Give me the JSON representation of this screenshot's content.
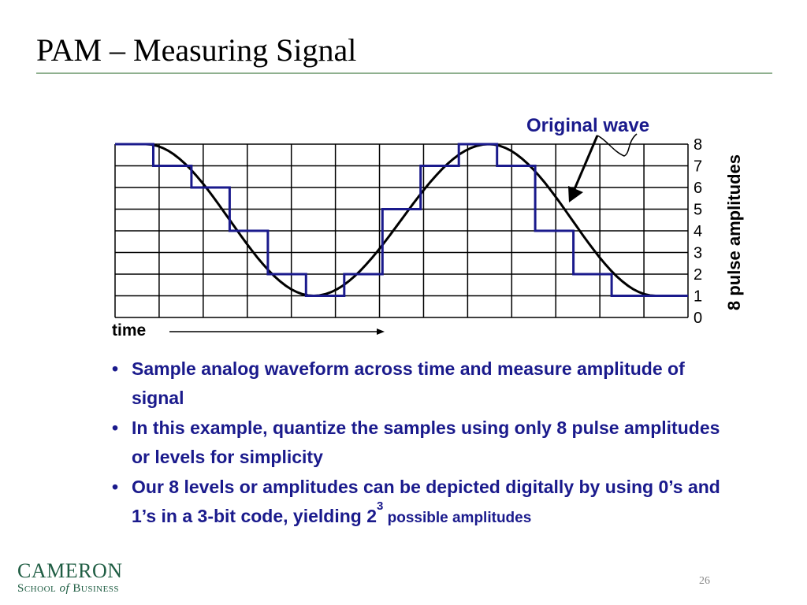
{
  "slide": {
    "title": "PAM – Measuring Signal",
    "page_number": "26"
  },
  "figure": {
    "original_wave_label": "Original wave",
    "levels_label": "8 pulse amplitudes",
    "time_label": "time",
    "level_numbers": [
      "8",
      "7",
      "6",
      "5",
      "4",
      "3",
      "2",
      "1",
      "0"
    ],
    "quantized_levels": [
      8,
      7,
      6,
      4,
      2,
      1,
      2,
      5,
      7,
      8,
      7,
      4,
      2,
      1,
      1
    ],
    "colors": {
      "wave": "#000000",
      "pam": "#1a1a8c",
      "grid": "#000000"
    }
  },
  "bullets": [
    {
      "text": "Sample analog waveform across time and measure amplitude of signal"
    },
    {
      "text": "In this example, quantize the samples using only 8 pulse amplitudes or levels for simplicity"
    },
    {
      "text": "Our 8 levels or amplitudes can be depicted digitally by using 0’s and 1’s in a 3-bit code, yielding 2",
      "superscript": "3",
      "tail": " possible amplitudes"
    }
  ],
  "logo": {
    "name": "CAMERON",
    "sub_before": "School",
    "sub_of": "of",
    "sub_after": "Business"
  }
}
